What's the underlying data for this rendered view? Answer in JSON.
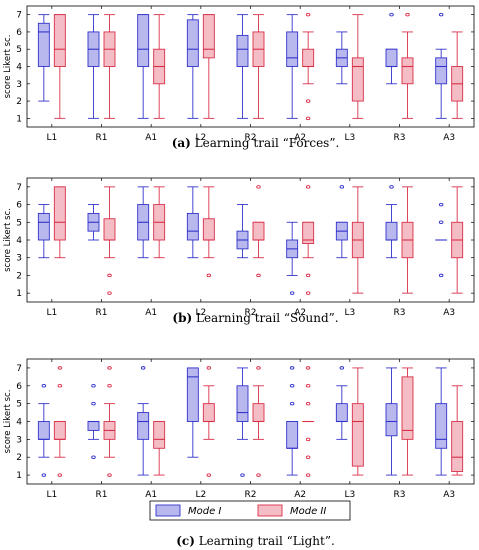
{
  "legend": {
    "items": [
      {
        "label": "Mode I",
        "fill": "#b8b8ee",
        "stroke": "#3333cc"
      },
      {
        "label": "Mode II",
        "fill": "#f4bcc4",
        "stroke": "#d9304a"
      }
    ]
  },
  "chart_data": [
    {
      "type": "box",
      "caption_letter": "(a)",
      "caption_text": " Learning trail “Forces”.",
      "ylabel": "score Likert sc.",
      "ylim": [
        0.5,
        7.5
      ],
      "yticks": [
        1,
        2,
        3,
        4,
        5,
        6,
        7
      ],
      "categories": [
        "L1",
        "R1",
        "A1",
        "L2",
        "R2",
        "A2",
        "L3",
        "R3",
        "A3"
      ],
      "series": [
        {
          "name": "Mode I",
          "boxes": [
            {
              "min": 2,
              "q1": 4,
              "median": 6,
              "q3": 6.5,
              "max": 7,
              "outliers": []
            },
            {
              "min": 1,
              "q1": 4,
              "median": 5,
              "q3": 6,
              "max": 7,
              "outliers": []
            },
            {
              "min": 1,
              "q1": 4,
              "median": 5,
              "q3": 7,
              "max": 7,
              "outliers": []
            },
            {
              "min": 1,
              "q1": 4,
              "median": 5,
              "q3": 6.7,
              "max": 7,
              "outliers": []
            },
            {
              "min": 1,
              "q1": 4,
              "median": 5,
              "q3": 5.8,
              "max": 7,
              "outliers": []
            },
            {
              "min": 1,
              "q1": 4,
              "median": 4.5,
              "q3": 6,
              "max": 7,
              "outliers": []
            },
            {
              "min": 3,
              "q1": 4,
              "median": 4.5,
              "q3": 5,
              "max": 6,
              "outliers": []
            },
            {
              "min": 3,
              "q1": 4,
              "median": 4,
              "q3": 5,
              "max": 5,
              "outliers": [
                7
              ]
            },
            {
              "min": 1,
              "q1": 3,
              "median": 4,
              "q3": 4.5,
              "max": 5,
              "outliers": [
                7
              ]
            }
          ]
        },
        {
          "name": "Mode II",
          "boxes": [
            {
              "min": 1,
              "q1": 4,
              "median": 5,
              "q3": 7,
              "max": 7,
              "outliers": []
            },
            {
              "min": 1,
              "q1": 4,
              "median": 5,
              "q3": 6,
              "max": 7,
              "outliers": []
            },
            {
              "min": 1,
              "q1": 3,
              "median": 4,
              "q3": 5,
              "max": 7,
              "outliers": []
            },
            {
              "min": 1,
              "q1": 4.5,
              "median": 5,
              "q3": 7,
              "max": 7,
              "outliers": []
            },
            {
              "min": 1,
              "q1": 4,
              "median": 5,
              "q3": 6,
              "max": 7,
              "outliers": []
            },
            {
              "min": 3,
              "q1": 4,
              "median": 4,
              "q3": 5,
              "max": 6,
              "outliers": [
                7,
                2,
                1
              ]
            },
            {
              "min": 1,
              "q1": 2,
              "median": 4,
              "q3": 4.5,
              "max": 7,
              "outliers": []
            },
            {
              "min": 1,
              "q1": 3,
              "median": 4,
              "q3": 4.5,
              "max": 6,
              "outliers": [
                7
              ]
            },
            {
              "min": 1,
              "q1": 2,
              "median": 3,
              "q3": 4,
              "max": 6,
              "outliers": []
            }
          ]
        }
      ]
    },
    {
      "type": "box",
      "caption_letter": "(b)",
      "caption_text": " Learning trail “Sound”.",
      "ylabel": "score Likert sc.",
      "ylim": [
        0.5,
        7.5
      ],
      "yticks": [
        1,
        2,
        3,
        4,
        5,
        6,
        7
      ],
      "categories": [
        "L1",
        "R1",
        "A1",
        "L2",
        "R2",
        "A2",
        "L3",
        "R3",
        "A3"
      ],
      "series": [
        {
          "name": "Mode I",
          "boxes": [
            {
              "min": 3,
              "q1": 4,
              "median": 5,
              "q3": 5.5,
              "max": 6,
              "outliers": []
            },
            {
              "min": 4,
              "q1": 4.5,
              "median": 5,
              "q3": 5.5,
              "max": 6,
              "outliers": []
            },
            {
              "min": 3,
              "q1": 4,
              "median": 5,
              "q3": 6,
              "max": 7,
              "outliers": []
            },
            {
              "min": 3,
              "q1": 4,
              "median": 4.5,
              "q3": 5.5,
              "max": 7,
              "outliers": []
            },
            {
              "min": 3,
              "q1": 3.5,
              "median": 4,
              "q3": 4.5,
              "max": 6,
              "outliers": []
            },
            {
              "min": 2,
              "q1": 3,
              "median": 3.5,
              "q3": 4,
              "max": 5,
              "outliers": [
                1
              ]
            },
            {
              "min": 3,
              "q1": 4,
              "median": 4.5,
              "q3": 5,
              "max": 5,
              "outliers": [
                7
              ]
            },
            {
              "min": 3,
              "q1": 4,
              "median": 4,
              "q3": 5,
              "max": 6,
              "outliers": [
                7
              ]
            },
            {
              "min": 4,
              "q1": 4,
              "median": 4,
              "q3": 4,
              "max": 4,
              "outliers": [
                6,
                5,
                2
              ]
            }
          ]
        },
        {
          "name": "Mode II",
          "boxes": [
            {
              "min": 3,
              "q1": 4,
              "median": 5,
              "q3": 7,
              "max": 7,
              "outliers": []
            },
            {
              "min": 3,
              "q1": 4,
              "median": 4,
              "q3": 5.2,
              "max": 7,
              "outliers": [
                2,
                1
              ]
            },
            {
              "min": 3,
              "q1": 4,
              "median": 5,
              "q3": 6,
              "max": 7,
              "outliers": []
            },
            {
              "min": 3,
              "q1": 4,
              "median": 4,
              "q3": 5.2,
              "max": 7,
              "outliers": [
                2
              ]
            },
            {
              "min": 3,
              "q1": 4,
              "median": 4,
              "q3": 5,
              "max": 5,
              "outliers": [
                7,
                2
              ]
            },
            {
              "min": 3,
              "q1": 3.8,
              "median": 4,
              "q3": 5,
              "max": 5,
              "outliers": [
                7,
                2,
                1
              ]
            },
            {
              "min": 1,
              "q1": 3,
              "median": 4,
              "q3": 5,
              "max": 7,
              "outliers": []
            },
            {
              "min": 1,
              "q1": 3,
              "median": 4,
              "q3": 5,
              "max": 7,
              "outliers": []
            },
            {
              "min": 1,
              "q1": 3,
              "median": 4,
              "q3": 5,
              "max": 7,
              "outliers": []
            }
          ]
        }
      ]
    },
    {
      "type": "box",
      "caption_letter": "(c)",
      "caption_text": " Learning trail “Light”.",
      "ylabel": "score Likert sc.",
      "ylim": [
        0.5,
        7.5
      ],
      "yticks": [
        1,
        2,
        3,
        4,
        5,
        6,
        7
      ],
      "categories": [
        "L1",
        "R1",
        "A1",
        "L2",
        "R2",
        "A2",
        "L3",
        "R3",
        "A3"
      ],
      "series": [
        {
          "name": "Mode I",
          "boxes": [
            {
              "min": 2,
              "q1": 3,
              "median": 3,
              "q3": 4,
              "max": 5,
              "outliers": [
                6,
                1
              ]
            },
            {
              "min": 3,
              "q1": 3.5,
              "median": 4,
              "q3": 4,
              "max": 4,
              "outliers": [
                6,
                5,
                2
              ]
            },
            {
              "min": 1,
              "q1": 3,
              "median": 4,
              "q3": 4.5,
              "max": 5,
              "outliers": [
                7
              ]
            },
            {
              "min": 2,
              "q1": 4,
              "median": 6.5,
              "q3": 7,
              "max": 7,
              "outliers": []
            },
            {
              "min": 3,
              "q1": 4,
              "median": 4.5,
              "q3": 6,
              "max": 7,
              "outliers": [
                1
              ]
            },
            {
              "min": 1,
              "q1": 2.5,
              "median": 2.5,
              "q3": 4,
              "max": 4,
              "outliers": [
                7,
                6,
                5
              ]
            },
            {
              "min": 3,
              "q1": 4,
              "median": 4,
              "q3": 5,
              "max": 6,
              "outliers": [
                7
              ]
            },
            {
              "min": 1,
              "q1": 3.2,
              "median": 4,
              "q3": 5,
              "max": 7,
              "outliers": []
            },
            {
              "min": 1,
              "q1": 2.5,
              "median": 3,
              "q3": 5,
              "max": 7,
              "outliers": []
            }
          ]
        },
        {
          "name": "Mode II",
          "boxes": [
            {
              "min": 2,
              "q1": 3,
              "median": 3,
              "q3": 4,
              "max": 4,
              "outliers": [
                7,
                6,
                1
              ]
            },
            {
              "min": 2,
              "q1": 3,
              "median": 3.5,
              "q3": 4,
              "max": 5,
              "outliers": [
                7,
                6,
                1
              ]
            },
            {
              "min": 1,
              "q1": 2.5,
              "median": 3,
              "q3": 4,
              "max": 4,
              "outliers": []
            },
            {
              "min": 3,
              "q1": 4,
              "median": 4,
              "q3": 5,
              "max": 6,
              "outliers": [
                7,
                1
              ]
            },
            {
              "min": 3,
              "q1": 4,
              "median": 4,
              "q3": 5,
              "max": 6,
              "outliers": [
                7,
                1
              ]
            },
            {
              "min": 4,
              "q1": 4,
              "median": 4,
              "q3": 4,
              "max": 4,
              "outliers": [
                7,
                6,
                5,
                3,
                2,
                1
              ]
            },
            {
              "min": 1,
              "q1": 1.5,
              "median": 4,
              "q3": 5,
              "max": 7,
              "outliers": []
            },
            {
              "min": 1,
              "q1": 3,
              "median": 3.5,
              "q3": 6.5,
              "max": 7,
              "outliers": []
            },
            {
              "min": 1,
              "q1": 1.2,
              "median": 2,
              "q3": 4,
              "max": 6,
              "outliers": []
            }
          ]
        }
      ]
    }
  ]
}
